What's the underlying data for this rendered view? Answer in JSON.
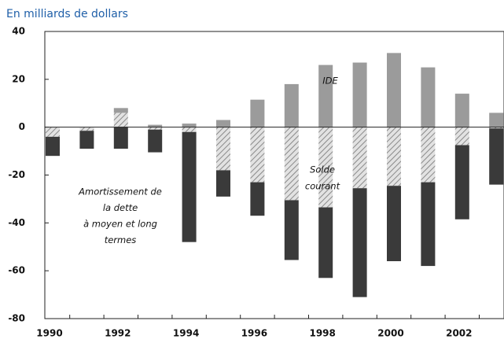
{
  "chart_data": {
    "type": "bar",
    "stacked": true,
    "title": "En milliards de dollars",
    "categories": [
      "1990",
      null,
      "1992",
      null,
      "1994",
      null,
      "1996",
      null,
      "1998",
      null,
      "2000",
      null,
      "2002",
      null
    ],
    "series": [
      {
        "color": "#cfcfcf",
        "pattern": "hatch",
        "values": [
          -4,
          -1.5,
          6,
          -1,
          -2,
          -18,
          -23,
          -30.5,
          -33.5,
          -25.5,
          -24.5,
          -23,
          -7.5,
          -0.5
        ]
      },
      {
        "color": "#9b9b9b",
        "values": [
          0,
          0,
          2,
          1,
          1.5,
          3,
          11.5,
          18,
          26,
          27,
          31,
          25,
          14,
          6
        ]
      },
      {
        "color": "#3a3a3a",
        "values": [
          -8,
          -7.5,
          -9,
          -9.5,
          -46,
          -11,
          -14,
          -25,
          -29.5,
          -45.5,
          -31.5,
          -35,
          -31,
          -23.5
        ]
      }
    ],
    "annotations": [
      {
        "lines": [
          "IDE"
        ]
      },
      {
        "lines": [
          "Solde",
          "courant"
        ]
      },
      {
        "lines": [
          "Amortissement de",
          "la dette",
          "à moyen et long",
          "termes"
        ]
      }
    ],
    "ylim": [
      -80,
      40
    ],
    "yticks": [
      -80,
      -60,
      -40,
      -20,
      0,
      20,
      40
    ]
  }
}
